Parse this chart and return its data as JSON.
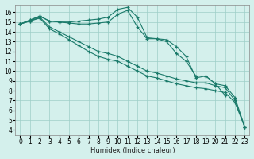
{
  "xlabel": "Humidex (Indice chaleur)",
  "bg_color": "#d4f0ec",
  "grid_color": "#9ecec8",
  "line_color": "#1a7a6a",
  "xlim": [
    -0.5,
    23.5
  ],
  "ylim": [
    3.5,
    16.8
  ],
  "xticks": [
    0,
    1,
    2,
    3,
    4,
    5,
    6,
    7,
    8,
    9,
    10,
    11,
    12,
    13,
    14,
    15,
    16,
    17,
    18,
    19,
    20,
    21,
    22,
    23
  ],
  "yticks": [
    4,
    5,
    6,
    7,
    8,
    9,
    10,
    11,
    12,
    13,
    14,
    15,
    16
  ],
  "lines": [
    {
      "x": [
        0,
        1,
        2,
        3,
        4,
        5,
        6,
        7,
        8,
        9,
        10,
        11,
        12,
        13,
        14,
        15,
        16,
        17,
        18,
        19,
        20,
        21
      ],
      "y": [
        14.8,
        15.2,
        15.6,
        15.1,
        15.0,
        15.0,
        15.1,
        15.2,
        15.3,
        15.5,
        16.3,
        16.5,
        15.5,
        13.4,
        13.3,
        13.2,
        12.5,
        11.5,
        9.3,
        9.5,
        8.7,
        7.5
      ]
    },
    {
      "x": [
        0,
        1,
        2,
        3,
        4,
        5,
        6,
        7,
        8,
        9,
        10,
        11,
        12,
        13,
        14,
        15,
        16,
        17,
        18,
        19,
        20,
        21,
        22,
        23
      ],
      "y": [
        14.8,
        15.2,
        15.6,
        15.1,
        15.0,
        14.9,
        14.8,
        14.8,
        14.9,
        15.0,
        15.8,
        16.2,
        14.5,
        13.3,
        13.3,
        13.0,
        11.8,
        11.0,
        9.5,
        9.5,
        8.7,
        8.5,
        7.3,
        4.3
      ]
    },
    {
      "x": [
        0,
        1,
        2,
        3,
        4,
        5,
        6,
        7,
        8,
        9,
        10,
        11,
        12,
        13,
        14,
        15,
        16,
        17,
        18,
        19,
        20,
        21,
        22,
        23
      ],
      "y": [
        14.8,
        15.1,
        15.5,
        14.5,
        14.0,
        13.5,
        13.0,
        12.5,
        12.0,
        11.8,
        11.5,
        11.0,
        10.5,
        10.0,
        9.8,
        9.5,
        9.2,
        9.0,
        8.8,
        8.8,
        8.5,
        8.3,
        7.0,
        4.3
      ]
    },
    {
      "x": [
        0,
        1,
        2,
        3,
        4,
        5,
        6,
        7,
        8,
        9,
        10,
        11,
        12,
        13,
        14,
        15,
        16,
        17,
        18,
        19,
        20,
        21,
        22,
        23
      ],
      "y": [
        14.8,
        15.1,
        15.4,
        14.3,
        13.8,
        13.2,
        12.6,
        12.0,
        11.5,
        11.2,
        11.0,
        10.5,
        10.0,
        9.5,
        9.3,
        9.0,
        8.7,
        8.5,
        8.3,
        8.2,
        8.0,
        7.8,
        6.8,
        4.3
      ]
    }
  ]
}
